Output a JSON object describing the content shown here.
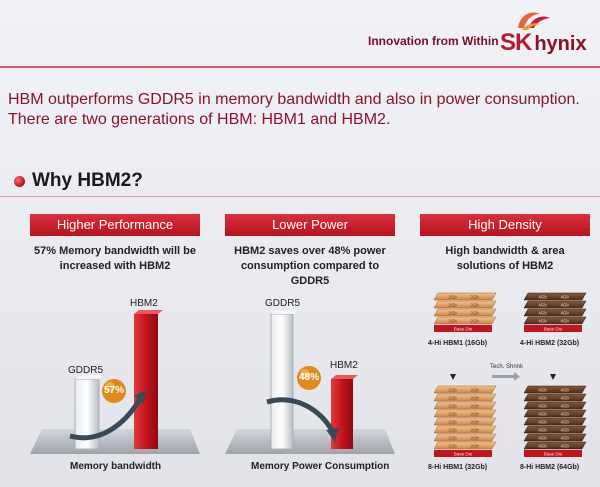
{
  "header": {
    "tagline": "Innovation from Within",
    "logo_sk": "SK",
    "logo_hynix": "hynix"
  },
  "intro": {
    "line1": "HBM outperforms GDDR5 in memory bandwidth and also in power consumption.",
    "line2": "There are two generations of HBM: HBM1 and HBM2."
  },
  "section": {
    "title": "Why HBM2?"
  },
  "columns": [
    {
      "title": "Higher Performance",
      "desc_line1": "57% Memory bandwidth will be",
      "desc_line2": "increased with HBM2",
      "badge": "57%",
      "bar_a": "GDDR5",
      "bar_b": "HBM2",
      "caption": "Memory bandwidth"
    },
    {
      "title": "Lower Power",
      "desc_line1": "HBM2 saves over 48% power",
      "desc_line2": "consumption compared to GDDR5",
      "badge": "48%",
      "bar_a": "GDDR5",
      "bar_b": "HBM2",
      "caption": "Memory Power Consumption"
    },
    {
      "title": "High Density",
      "desc_line1": "High bandwidth & area",
      "desc_line2": "solutions of HBM2",
      "stacks": [
        {
          "label": "4-Hi HBM1 (16Gb)",
          "layer_text": "2Gb",
          "base_text": "Base Die",
          "layers": 4
        },
        {
          "label": "4-Hi HBM2 (32Gb)",
          "layer_text": "4Gb",
          "base_text": "Base Die",
          "layers": 4
        },
        {
          "label": "8-Hi HBM1 (32Gb)",
          "layer_text": "2Gb",
          "base_text": "Base Die",
          "layers": 8
        },
        {
          "label": "8-Hi HBM2 (64Gb)",
          "layer_text": "4Gb",
          "base_text": "Base Die",
          "layers": 8
        }
      ],
      "shrink_label": "Tech. Shrink"
    }
  ],
  "colors": {
    "brand_red": "#b51a30",
    "dark_red": "#8a1428",
    "gray_bar": "#c4c9d0"
  }
}
